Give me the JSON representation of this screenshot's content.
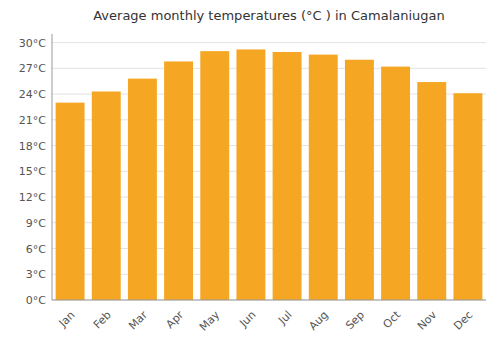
{
  "chart_data": {
    "type": "bar",
    "title": "Average monthly temperatures (°C ) in Camalaniugan",
    "categories": [
      "Jan",
      "Feb",
      "Mar",
      "Apr",
      "May",
      "Jun",
      "Jul",
      "Aug",
      "Sep",
      "Oct",
      "Nov",
      "Dec"
    ],
    "values": [
      23.0,
      24.3,
      25.8,
      27.8,
      29.0,
      29.2,
      28.9,
      28.6,
      28.0,
      27.2,
      25.4,
      24.1
    ],
    "color": "#F5A623",
    "ylim": [
      0,
      31
    ],
    "yticks": [
      {
        "value": 0,
        "label": "0°C"
      },
      {
        "value": 3,
        "label": "3°C"
      },
      {
        "value": 6,
        "label": "6°C"
      },
      {
        "value": 9,
        "label": "9°C"
      },
      {
        "value": 12,
        "label": "12°C"
      },
      {
        "value": 15,
        "label": "15°C"
      },
      {
        "value": 18,
        "label": "18°C"
      },
      {
        "value": 21,
        "label": "21°C"
      },
      {
        "value": 24,
        "label": "24°C"
      },
      {
        "value": 27,
        "label": "27°C"
      },
      {
        "value": 30,
        "label": "30°C"
      }
    ],
    "grid": true
  }
}
